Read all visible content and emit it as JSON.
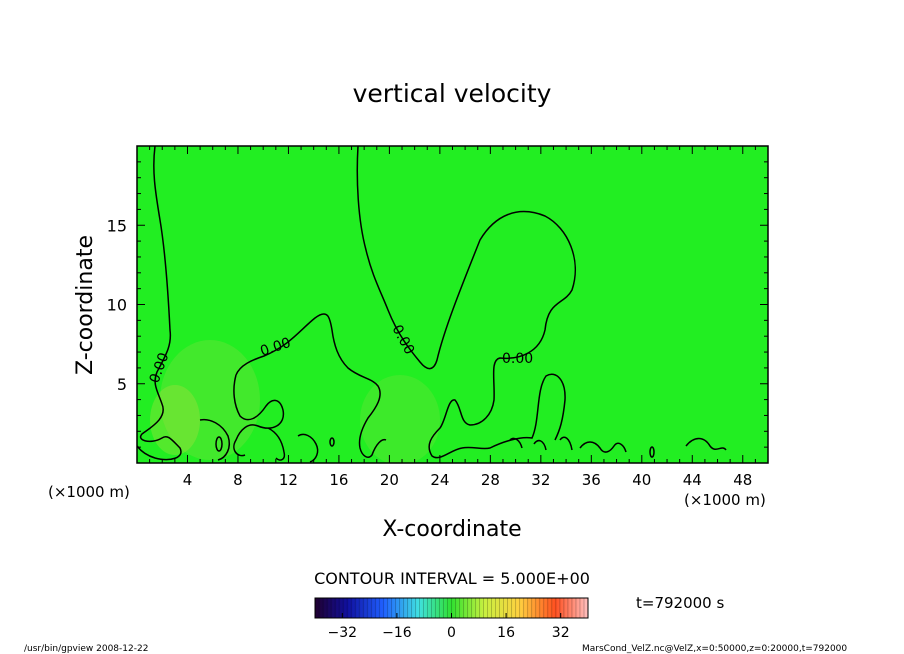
{
  "chart_data": {
    "type": "heatmap",
    "title": "vertical velocity",
    "xlabel": "X-coordinate",
    "ylabel": "Z-coordinate",
    "x_unit": "(×1000 m)",
    "y_unit": "(×1000 m)",
    "xlim": [
      0,
      50
    ],
    "ylim": [
      0,
      20
    ],
    "x_ticks": [
      4,
      8,
      12,
      16,
      20,
      24,
      28,
      32,
      36,
      40,
      44,
      48
    ],
    "y_ticks": [
      5,
      10,
      15
    ],
    "contour_label": "0.00",
    "contour_interval_text": "CONTOUR INTERVAL = 5.000E+00",
    "time_text": "t=792000 s",
    "colorbar": {
      "range": [
        -40,
        40
      ],
      "ticks": [
        -32,
        -16,
        0,
        16,
        32
      ]
    },
    "field_color": "#22ee22",
    "footer_left": "/usr/bin/gpview   2008-12-22",
    "footer_right": "MarsCond_VelZ.nc@VelZ,x=0:50000,z=0:20000,t=792000"
  }
}
